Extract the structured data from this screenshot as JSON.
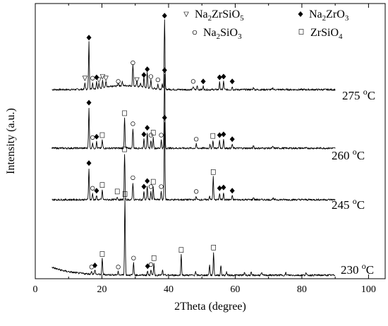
{
  "chart_data": {
    "type": "line",
    "xlabel": "2Theta (degree)",
    "ylabel": "Intensity (a.u.)",
    "xlim": [
      0,
      105
    ],
    "x_ticks": [
      0,
      20,
      40,
      60,
      80,
      100
    ],
    "y_ticks_shown": false,
    "grid": false,
    "series": [
      {
        "name": "275 °C",
        "temp_value": "275",
        "unit": "°C",
        "baseline": 0.0,
        "peaks": [
          [
            14.9,
            8
          ],
          [
            16.1,
            58
          ],
          [
            17.2,
            8
          ],
          [
            18.4,
            9
          ],
          [
            19.1,
            6
          ],
          [
            20.2,
            10
          ],
          [
            21.2,
            8
          ],
          [
            24.9,
            4
          ],
          [
            26.1,
            5
          ],
          [
            29.3,
            27
          ],
          [
            30.5,
            6
          ],
          [
            31.6,
            5
          ],
          [
            32.6,
            12
          ],
          [
            33.6,
            19
          ],
          [
            34.7,
            10
          ],
          [
            36.8,
            6
          ],
          [
            38.1,
            7
          ],
          [
            38.8,
            85
          ],
          [
            47.4,
            4
          ],
          [
            48.6,
            5
          ],
          [
            50.4,
            4
          ],
          [
            55.3,
            9
          ],
          [
            56.5,
            10
          ],
          [
            59.1,
            4
          ],
          [
            65.5,
            3
          ],
          [
            71.3,
            2
          ]
        ],
        "markers": [
          [
            "Na2ZrSiO5",
            14.9
          ],
          [
            "Na2ZrO3",
            16.1
          ],
          [
            "Na2SiO3",
            17.2
          ],
          [
            "Na2ZrO3",
            18.4
          ],
          [
            "Na2ZrSiO5",
            19.1
          ],
          [
            "Na2ZrSiO5",
            20.2
          ],
          [
            "Na2ZrSiO5",
            21.2
          ],
          [
            "Na2SiO3",
            24.9
          ],
          [
            "Na2SiO3",
            29.3
          ],
          [
            "Na2ZrSiO5",
            30.5
          ],
          [
            "Na2ZrO3",
            32.6
          ],
          [
            "Na2ZrO3",
            33.6
          ],
          [
            "Na2SiO3",
            34.7
          ],
          [
            "Na2SiO3",
            36.8
          ],
          [
            "Na2ZrO3",
            38.8
          ],
          [
            "Na2SiO3",
            47.4
          ],
          [
            "Na2ZrO3",
            50.4
          ],
          [
            "Na2ZrO3",
            55.3
          ],
          [
            "Na2ZrO3",
            56.5
          ],
          [
            "Na2ZrO3",
            59.1
          ]
        ]
      },
      {
        "name": "260 °C",
        "temp_value": "260",
        "unit": "°C",
        "baseline": 0.0,
        "peaks": [
          [
            16.1,
            50
          ],
          [
            17.2,
            7
          ],
          [
            18.4,
            8
          ],
          [
            20.1,
            10
          ],
          [
            26.8,
            37
          ],
          [
            29.3,
            24
          ],
          [
            32.6,
            11
          ],
          [
            33.6,
            19
          ],
          [
            34.7,
            10
          ],
          [
            35.4,
            13
          ],
          [
            37.8,
            10
          ],
          [
            38.8,
            90
          ],
          [
            48.3,
            5
          ],
          [
            52.4,
            4
          ],
          [
            53.3,
            9
          ],
          [
            55.3,
            10
          ],
          [
            56.5,
            11
          ],
          [
            59.1,
            5
          ],
          [
            65.5,
            3
          ],
          [
            71.3,
            2
          ]
        ],
        "markers": [
          [
            "Na2ZrO3",
            16.1
          ],
          [
            "Na2SiO3",
            17.2
          ],
          [
            "Na2ZrO3",
            18.4
          ],
          [
            "ZrSiO4",
            20.1
          ],
          [
            "ZrSiO4",
            26.8
          ],
          [
            "Na2SiO3",
            29.3
          ],
          [
            "Na2ZrO3",
            32.6
          ],
          [
            "Na2ZrO3",
            33.6
          ],
          [
            "Na2SiO3",
            34.7
          ],
          [
            "ZrSiO4",
            35.4
          ],
          [
            "Na2SiO3",
            37.8
          ],
          [
            "Na2ZrO3",
            38.8
          ],
          [
            "Na2SiO3",
            48.3
          ],
          [
            "ZrSiO4",
            53.3
          ],
          [
            "Na2ZrO3",
            55.3
          ],
          [
            "Na2ZrO3",
            56.5
          ],
          [
            "Na2ZrO3",
            59.1
          ]
        ]
      },
      {
        "name": "245 °C",
        "temp_value": "245",
        "unit": "°C",
        "baseline": 0.0,
        "peaks": [
          [
            16.1,
            39
          ],
          [
            17.2,
            8
          ],
          [
            18.4,
            5
          ],
          [
            20.1,
            12
          ],
          [
            24.6,
            4
          ],
          [
            26.8,
            56
          ],
          [
            29.3,
            21
          ],
          [
            32.6,
            10
          ],
          [
            33.6,
            17
          ],
          [
            34.7,
            10
          ],
          [
            35.4,
            16
          ],
          [
            37.8,
            10
          ],
          [
            38.8,
            95
          ],
          [
            48.3,
            4
          ],
          [
            52.3,
            5
          ],
          [
            53.4,
            28
          ],
          [
            55.3,
            8
          ],
          [
            56.5,
            9
          ],
          [
            59.1,
            5
          ],
          [
            65.5,
            3
          ],
          [
            71.3,
            2
          ]
        ],
        "markers": [
          [
            "Na2ZrO3",
            16.1
          ],
          [
            "Na2SiO3",
            17.2
          ],
          [
            "Na2ZrO3",
            18.4
          ],
          [
            "ZrSiO4",
            20.1
          ],
          [
            "ZrSiO4",
            24.6
          ],
          [
            "ZrSiO4",
            26.8
          ],
          [
            "Na2SiO3",
            29.3
          ],
          [
            "Na2ZrO3",
            32.6
          ],
          [
            "Na2ZrO3",
            33.6
          ],
          [
            "Na2SiO3",
            34.7
          ],
          [
            "ZrSiO4",
            35.4
          ],
          [
            "Na2SiO3",
            37.8
          ],
          [
            "Na2ZrO3",
            38.8
          ],
          [
            "Na2SiO3",
            48.3
          ],
          [
            "ZrSiO4",
            53.4
          ],
          [
            "Na2ZrO3",
            55.3
          ],
          [
            "Na2ZrO3",
            56.5
          ],
          [
            "Na2ZrO3",
            59.1
          ]
        ]
      },
      {
        "name": "230 °C",
        "temp_value": "230",
        "unit": "°C",
        "baseline": 0.0,
        "peaks": [
          [
            16.9,
            4
          ],
          [
            17.9,
            6
          ],
          [
            20.1,
            20
          ],
          [
            24.9,
            4
          ],
          [
            26.9,
            94
          ],
          [
            29.5,
            15
          ],
          [
            33.7,
            5
          ],
          [
            34.7,
            7
          ],
          [
            35.6,
            15
          ],
          [
            38.2,
            6
          ],
          [
            43.8,
            25
          ],
          [
            48.1,
            4
          ],
          [
            52.3,
            13
          ],
          [
            53.5,
            28
          ],
          [
            55.7,
            12
          ],
          [
            57.4,
            4
          ],
          [
            62.8,
            4
          ],
          [
            64.8,
            3
          ],
          [
            67.9,
            3
          ],
          [
            75.2,
            3
          ],
          [
            81.2,
            3
          ]
        ],
        "markers": [
          [
            "Na2SiO3",
            16.9
          ],
          [
            "Na2ZrO3",
            17.9
          ],
          [
            "ZrSiO4",
            20.1
          ],
          [
            "Na2SiO3",
            24.9
          ],
          [
            "ZrSiO4",
            26.9
          ],
          [
            "Na2SiO3",
            29.5
          ],
          [
            "Na2ZrO3",
            33.7
          ],
          [
            "Na2SiO3",
            34.7
          ],
          [
            "ZrSiO4",
            35.6
          ],
          [
            "ZrSiO4",
            43.8
          ],
          [
            "ZrSiO4",
            53.5
          ]
        ]
      }
    ],
    "legend": [
      {
        "symbol": "triangle-down-open",
        "phase": "Na2ZrSiO5",
        "base": "Na",
        "s1": "2",
        "mid": "ZrSiO",
        "s2": "5"
      },
      {
        "symbol": "diamond-filled",
        "phase": "Na2ZrO3",
        "base": "Na",
        "s1": "2",
        "mid": "ZrO",
        "s2": "3"
      },
      {
        "symbol": "circle-open",
        "phase": "Na2SiO3",
        "base": "Na",
        "s1": "2",
        "mid": "SiO",
        "s2": "3"
      },
      {
        "symbol": "square-open",
        "phase": "ZrSiO4",
        "base": "",
        "s1": "",
        "mid": "ZrSiO",
        "s2": "4"
      }
    ]
  }
}
